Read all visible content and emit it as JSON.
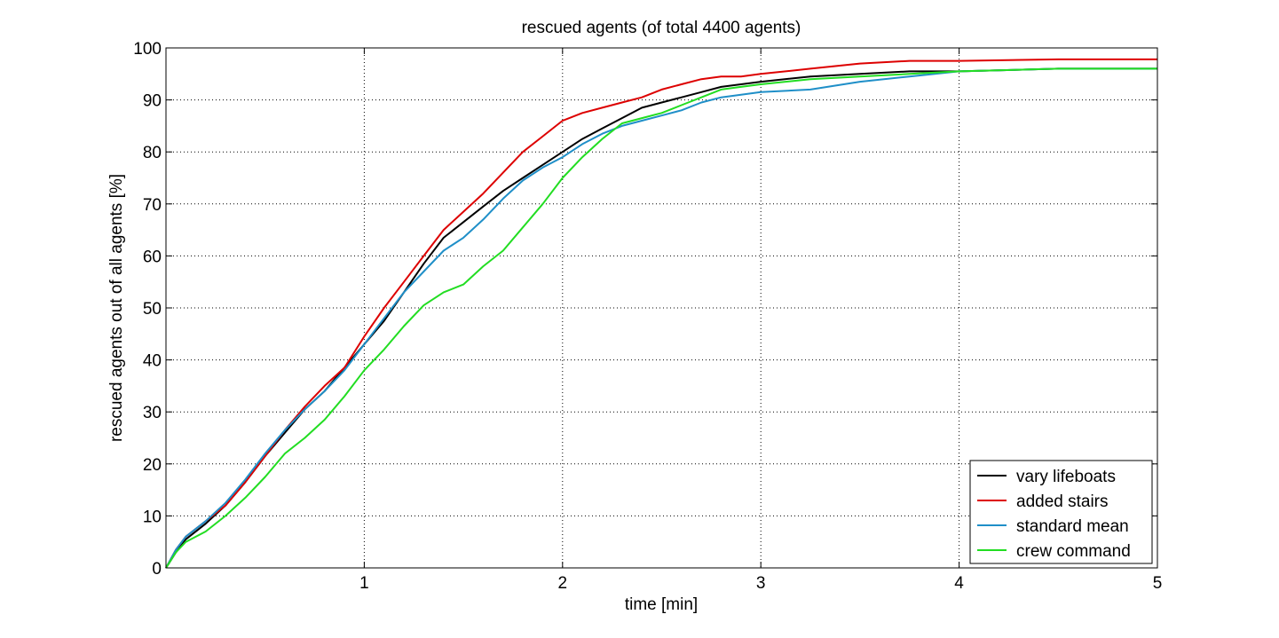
{
  "chart_data": {
    "type": "line",
    "title": "rescued agents (of total 4400 agents)",
    "xlabel": "time [min]",
    "ylabel": "rescued agents out of all agents [%]",
    "xlim": [
      0,
      5
    ],
    "ylim": [
      0,
      100
    ],
    "xticks": [
      1,
      2,
      3,
      4,
      5
    ],
    "xtick_labels": [
      "1",
      "2",
      "3",
      "4",
      "5"
    ],
    "yticks": [
      0,
      10,
      20,
      30,
      40,
      50,
      60,
      70,
      80,
      90,
      100
    ],
    "ytick_labels": [
      "0",
      "10",
      "20",
      "30",
      "40",
      "50",
      "60",
      "70",
      "80",
      "90",
      "100"
    ],
    "grid": true,
    "legend_position": "bottom-right",
    "series": [
      {
        "name": "vary lifeboats",
        "color": "#000000",
        "x": [
          0,
          0.05,
          0.1,
          0.2,
          0.3,
          0.4,
          0.5,
          0.6,
          0.7,
          0.8,
          0.9,
          1.0,
          1.1,
          1.2,
          1.3,
          1.4,
          1.5,
          1.6,
          1.7,
          1.8,
          1.9,
          2.0,
          2.1,
          2.2,
          2.3,
          2.4,
          2.5,
          2.6,
          2.7,
          2.8,
          2.9,
          3.0,
          3.25,
          3.5,
          3.75,
          4.0,
          4.5,
          5.0
        ],
        "y": [
          0,
          3,
          5.5,
          8.5,
          12,
          16.5,
          21.5,
          26,
          30.5,
          34,
          38.5,
          43,
          47.5,
          53,
          58.5,
          63.5,
          66.5,
          69.5,
          72.5,
          75,
          77.5,
          80,
          82.5,
          84.5,
          86.5,
          88.5,
          89.5,
          90.5,
          91.5,
          92.5,
          93,
          93.5,
          94.5,
          95,
          95.5,
          95.5,
          96,
          96
        ]
      },
      {
        "name": "added stairs",
        "color": "#dd0000",
        "x": [
          0,
          0.05,
          0.1,
          0.2,
          0.3,
          0.4,
          0.5,
          0.6,
          0.7,
          0.8,
          0.9,
          1.0,
          1.1,
          1.2,
          1.3,
          1.4,
          1.5,
          1.6,
          1.7,
          1.8,
          1.9,
          2.0,
          2.1,
          2.2,
          2.3,
          2.4,
          2.5,
          2.6,
          2.7,
          2.8,
          2.9,
          3.0,
          3.25,
          3.5,
          3.75,
          4.0,
          4.5,
          5.0
        ],
        "y": [
          0,
          3.5,
          6,
          9,
          12,
          16.5,
          21.5,
          26.5,
          31,
          35,
          38.5,
          44.5,
          50,
          55,
          60,
          65,
          68.5,
          72,
          76,
          80,
          83,
          86,
          87.5,
          88.5,
          89.5,
          90.5,
          92,
          93,
          94,
          94.5,
          94.5,
          95,
          96,
          97,
          97.5,
          97.5,
          97.8,
          97.8
        ]
      },
      {
        "name": "standard mean",
        "color": "#1f8fc8",
        "x": [
          0,
          0.05,
          0.1,
          0.2,
          0.3,
          0.4,
          0.5,
          0.6,
          0.7,
          0.8,
          0.9,
          1.0,
          1.1,
          1.2,
          1.3,
          1.4,
          1.5,
          1.6,
          1.7,
          1.8,
          1.9,
          2.0,
          2.1,
          2.2,
          2.3,
          2.4,
          2.5,
          2.6,
          2.7,
          2.8,
          2.9,
          3.0,
          3.25,
          3.5,
          3.75,
          4.0,
          4.5,
          5.0
        ],
        "y": [
          0,
          3.5,
          6,
          9,
          12.5,
          17,
          22,
          26.5,
          30.5,
          34,
          38,
          43,
          48,
          53,
          57,
          61,
          63.5,
          67,
          71,
          74.5,
          77,
          79,
          81.5,
          83.5,
          85,
          86,
          87,
          88,
          89.5,
          90.5,
          91,
          91.5,
          92,
          93.5,
          94.5,
          95.5,
          96,
          96
        ]
      },
      {
        "name": "crew command",
        "color": "#22dd22",
        "x": [
          0,
          0.05,
          0.1,
          0.2,
          0.3,
          0.4,
          0.5,
          0.6,
          0.7,
          0.8,
          0.9,
          1.0,
          1.1,
          1.2,
          1.3,
          1.4,
          1.5,
          1.6,
          1.7,
          1.8,
          1.9,
          2.0,
          2.1,
          2.2,
          2.3,
          2.4,
          2.5,
          2.6,
          2.7,
          2.8,
          2.9,
          3.0,
          3.25,
          3.5,
          3.75,
          4.0,
          4.5,
          5.0
        ],
        "y": [
          0,
          3,
          5,
          7,
          10,
          13.5,
          17.5,
          22,
          25,
          28.5,
          33,
          38,
          42,
          46.5,
          50.5,
          53,
          54.5,
          58,
          61,
          65.5,
          70,
          75,
          79,
          82.5,
          85.5,
          86.5,
          87.5,
          89,
          90.5,
          92,
          92.5,
          93,
          94,
          94.5,
          95,
          95.5,
          96,
          96
        ]
      }
    ]
  }
}
